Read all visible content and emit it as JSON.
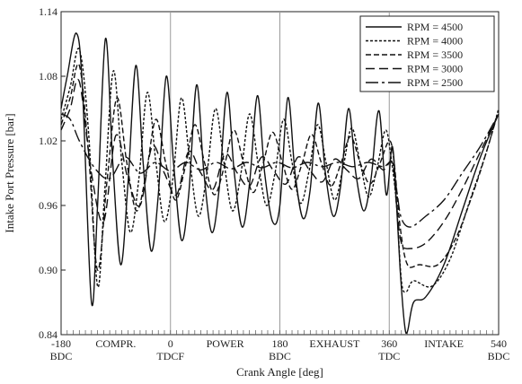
{
  "chart_data": {
    "type": "line",
    "title": "",
    "xlabel": "Crank Angle [deg]",
    "ylabel": "Intake Port Pressure [bar]",
    "xlim": [
      -180,
      540
    ],
    "ylim": [
      0.84,
      1.14
    ],
    "grid": "vertical lines at TDC / BDC",
    "legend_position": "top-right",
    "y_ticks": [
      "0.84",
      "0.90",
      "0.96",
      "1.02",
      "1.08",
      "1.14"
    ],
    "x_ticks": [
      {
        "value": -180,
        "label": "-180",
        "sub": "BDC"
      },
      {
        "value": 0,
        "label": "0",
        "sub": "TDCF"
      },
      {
        "value": 180,
        "label": "180",
        "sub": "BDC"
      },
      {
        "value": 360,
        "label": "360",
        "sub": "TDC"
      },
      {
        "value": 540,
        "label": "540",
        "sub": "BDC"
      }
    ],
    "stroke_labels": [
      {
        "x": -90,
        "text": "COMPR."
      },
      {
        "x": 90,
        "text": "POWER"
      },
      {
        "x": 270,
        "text": "EXHAUST"
      },
      {
        "x": 450,
        "text": "INTAKE"
      }
    ],
    "series": [
      {
        "name": "RPM = 4500",
        "dash": "solid",
        "x": [
          -180,
          -170,
          -155,
          -145,
          -130,
          -120,
          -107,
          -95,
          -82,
          -70,
          -57,
          -45,
          -32,
          -20,
          -7,
          5,
          18,
          30,
          43,
          55,
          68,
          80,
          93,
          105,
          118,
          130,
          143,
          155,
          168,
          180,
          193,
          205,
          218,
          230,
          243,
          255,
          268,
          280,
          293,
          305,
          318,
          330,
          343,
          355,
          365,
          372,
          378,
          385,
          390,
          400,
          420,
          450,
          480,
          510,
          540
        ],
        "y": [
          1.05,
          1.08,
          1.12,
          1.07,
          0.87,
          0.96,
          1.115,
          1.0,
          0.905,
          0.98,
          1.09,
          1.0,
          0.918,
          0.97,
          1.08,
          1.0,
          0.928,
          0.97,
          1.072,
          0.99,
          0.935,
          0.975,
          1.065,
          0.99,
          0.94,
          0.98,
          1.062,
          0.99,
          0.945,
          0.96,
          1.06,
          0.99,
          0.948,
          0.975,
          1.055,
          0.99,
          0.95,
          0.978,
          1.05,
          0.99,
          0.955,
          0.985,
          1.048,
          0.97,
          1.015,
          0.96,
          0.9,
          0.85,
          0.843,
          0.87,
          0.875,
          0.905,
          0.955,
          1.005,
          1.045
        ]
      },
      {
        "name": "RPM = 4000",
        "dash": "3,2",
        "x": [
          -180,
          -165,
          -150,
          -135,
          -120,
          -108,
          -94,
          -80,
          -66,
          -52,
          -38,
          -24,
          -10,
          4,
          18,
          32,
          46,
          60,
          74,
          88,
          102,
          116,
          130,
          144,
          158,
          172,
          186,
          200,
          214,
          228,
          242,
          256,
          270,
          284,
          298,
          312,
          326,
          340,
          354,
          364,
          372,
          380,
          388,
          400,
          430,
          460,
          490,
          520,
          540
        ],
        "y": [
          1.04,
          1.07,
          1.105,
          1.03,
          0.885,
          0.975,
          1.085,
          1.0,
          0.935,
          0.985,
          1.065,
          1.0,
          0.945,
          0.985,
          1.06,
          1.0,
          0.95,
          0.99,
          1.05,
          1.0,
          0.955,
          0.99,
          1.045,
          1.0,
          0.96,
          0.99,
          1.04,
          1.0,
          0.962,
          0.992,
          1.035,
          1.0,
          0.965,
          0.995,
          1.032,
          1.0,
          0.968,
          0.995,
          1.03,
          1.0,
          0.96,
          0.89,
          0.88,
          0.89,
          0.885,
          0.91,
          0.96,
          1.01,
          1.05
        ]
      },
      {
        "name": "RPM = 3500",
        "dash": "6,3",
        "x": [
          -180,
          -165,
          -150,
          -135,
          -120,
          -104,
          -88,
          -72,
          -56,
          -40,
          -24,
          -8,
          8,
          24,
          40,
          56,
          72,
          88,
          104,
          120,
          136,
          152,
          168,
          184,
          200,
          216,
          232,
          248,
          264,
          280,
          296,
          312,
          328,
          344,
          360,
          368,
          378,
          390,
          410,
          440,
          470,
          500,
          520,
          540
        ],
        "y": [
          1.035,
          1.06,
          1.09,
          1.01,
          0.9,
          0.985,
          1.06,
          1.0,
          0.955,
          0.99,
          1.04,
          1.0,
          0.965,
          0.995,
          1.035,
          1.0,
          0.97,
          0.995,
          1.03,
          1.0,
          0.972,
          0.998,
          1.028,
          1.0,
          0.975,
          0.998,
          1.026,
          1.0,
          0.978,
          0.998,
          1.024,
          1.0,
          0.98,
          0.998,
          1.02,
          1.0,
          0.94,
          0.905,
          0.905,
          0.905,
          0.93,
          0.975,
          1.01,
          1.048
        ]
      },
      {
        "name": "RPM = 3000",
        "dash": "10,5",
        "x": [
          -180,
          -165,
          -150,
          -130,
          -110,
          -90,
          -70,
          -50,
          -30,
          -10,
          10,
          30,
          50,
          70,
          90,
          110,
          130,
          150,
          170,
          190,
          210,
          230,
          250,
          270,
          290,
          310,
          330,
          350,
          365,
          372,
          380,
          395,
          420,
          450,
          480,
          510,
          540
        ],
        "y": [
          1.03,
          1.05,
          1.075,
          0.99,
          0.945,
          1.025,
          0.985,
          0.96,
          1.015,
          0.99,
          0.97,
          1.01,
          0.99,
          0.975,
          1.008,
          0.99,
          0.978,
          1.005,
          0.992,
          0.98,
          1.005,
          0.992,
          0.982,
          1.003,
          0.993,
          0.985,
          1.003,
          0.993,
          1.0,
          0.96,
          0.925,
          0.92,
          0.925,
          0.945,
          0.975,
          1.01,
          1.045
        ]
      },
      {
        "name": "RPM = 2500",
        "dash": "14,4,3,4",
        "x": [
          -180,
          -165,
          -150,
          -125,
          -100,
          -75,
          -50,
          -25,
          0,
          25,
          50,
          75,
          100,
          125,
          150,
          175,
          200,
          225,
          250,
          275,
          300,
          325,
          350,
          365,
          372,
          380,
          395,
          420,
          450,
          480,
          510,
          540
        ],
        "y": [
          1.045,
          1.04,
          1.02,
          0.995,
          0.985,
          1.005,
          0.99,
          1.0,
          0.992,
          1.0,
          0.993,
          1.0,
          0.994,
          1.0,
          0.995,
          1.0,
          0.995,
          1.0,
          0.996,
          1.0,
          0.996,
          1.0,
          0.996,
          1.0,
          0.975,
          0.948,
          0.94,
          0.95,
          0.965,
          0.99,
          1.015,
          1.045
        ]
      }
    ]
  }
}
